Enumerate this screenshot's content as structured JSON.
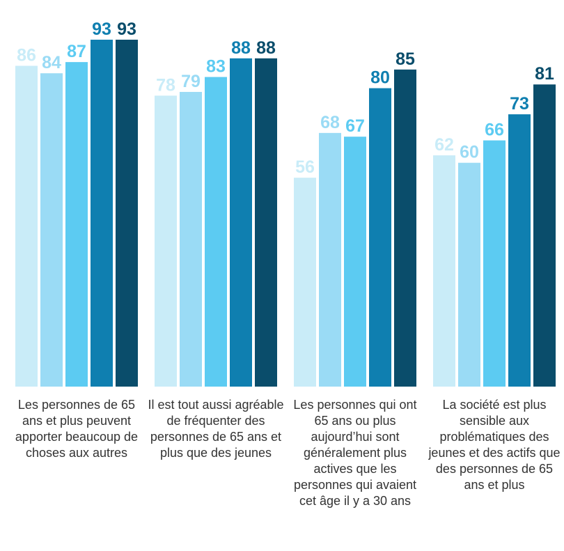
{
  "chart_data": {
    "type": "bar",
    "categories": [
      "Les personnes de 65 ans et plus peuvent apporter beaucoup de choses aux autres",
      "Il est tout aussi agréable de fréquenter des personnes de 65 ans et plus que des jeunes",
      "Les personnes qui ont 65 ans ou plus aujourd’hui sont généralement plus actives que les personnes qui avaient cet âge il y a 30 ans",
      "La société est plus sensible aux problématiques des jeunes et des actifs que des personnes de 65 ans et plus"
    ],
    "series": [
      {
        "color": "#c9ecf8",
        "values": [
          86,
          78,
          56,
          62
        ]
      },
      {
        "color": "#9adbf5",
        "values": [
          84,
          79,
          68,
          60
        ]
      },
      {
        "color": "#5ccbf2",
        "values": [
          87,
          83,
          67,
          66
        ]
      },
      {
        "color": "#0f7fb0",
        "values": [
          93,
          88,
          80,
          73
        ]
      },
      {
        "color": "#0a4d6b",
        "values": [
          93,
          88,
          85,
          81
        ]
      }
    ],
    "ylim": [
      0,
      100
    ]
  }
}
